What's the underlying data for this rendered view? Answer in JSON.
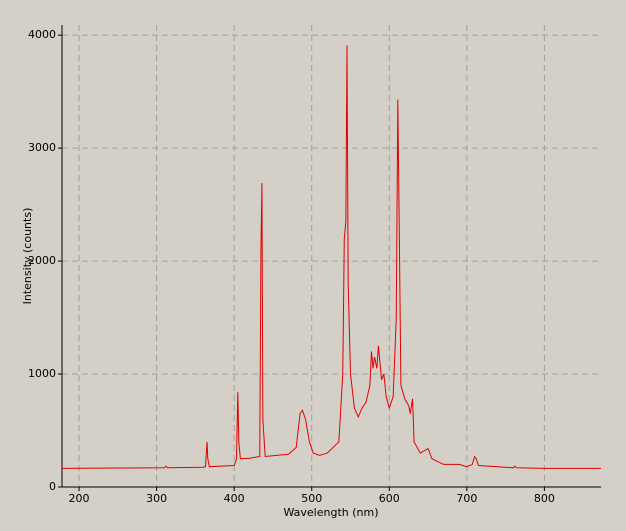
{
  "chart_data": {
    "type": "line",
    "x_label": "Wavelength (nm)",
    "y_label": "Intensity (counts)",
    "x": [
      178,
      250,
      310,
      312,
      314,
      360,
      363,
      365,
      366,
      368,
      400,
      403,
      404.7,
      406,
      408,
      420,
      433,
      434.5,
      435.8,
      437,
      440,
      470,
      480,
      485,
      488,
      492,
      497,
      502,
      510,
      520,
      535,
      540,
      542,
      544,
      545.5,
      547,
      550,
      555,
      560,
      565,
      570,
      575,
      577,
      579,
      581,
      584,
      586,
      588,
      590,
      593,
      596,
      600,
      605,
      609,
      611,
      613,
      615,
      620,
      625,
      627,
      630,
      632,
      640,
      650,
      655,
      670,
      690,
      700,
      707,
      710,
      712,
      715,
      760,
      762,
      764,
      800,
      873
    ],
    "values": [
      165,
      168,
      170,
      185,
      170,
      175,
      180,
      400,
      250,
      180,
      190,
      250,
      840,
      400,
      250,
      255,
      270,
      2100,
      2690,
      600,
      270,
      290,
      350,
      650,
      680,
      600,
      400,
      300,
      280,
      300,
      400,
      1000,
      2200,
      2350,
      3910,
      1800,
      1000,
      700,
      620,
      700,
      750,
      900,
      1200,
      1050,
      1150,
      1050,
      1250,
      1100,
      950,
      1000,
      800,
      700,
      800,
      1500,
      3430,
      2200,
      900,
      780,
      720,
      650,
      780,
      400,
      300,
      340,
      250,
      200,
      200,
      180,
      200,
      270,
      250,
      190,
      170,
      185,
      170,
      165,
      165
    ],
    "color": "#e00000",
    "xlim": [
      178,
      873
    ],
    "xticks": [
      200,
      300,
      400,
      500,
      600,
      700,
      800
    ],
    "ylim": [
      0,
      4090
    ],
    "yticks": [
      0,
      1000,
      2000,
      3000,
      4000
    ],
    "grid": true
  }
}
